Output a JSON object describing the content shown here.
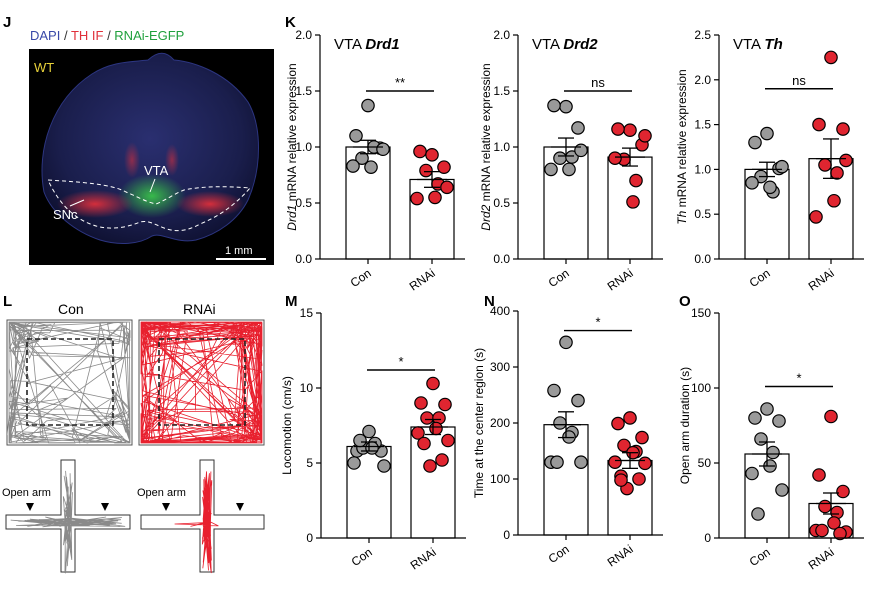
{
  "panel_labels": {
    "J": "J",
    "K": "K",
    "L": "L",
    "M": "M",
    "N": "N",
    "O": "O"
  },
  "micrograph": {
    "legend": {
      "dapi": "DAPI",
      "sep1": " / ",
      "th": "TH IF",
      "sep2": " / ",
      "rnai": "RNAi-EGFP"
    },
    "colors": {
      "dapi": "#3848a8",
      "th": "#e0303a",
      "rnai": "#1fa03c",
      "wt": "#e8d23a"
    },
    "condition": "WT",
    "region_vta": "VTA",
    "region_snc": "SNc",
    "scale_bar": "1 mm"
  },
  "tracks": {
    "con_label": "Con",
    "rnai_label": "RNAi",
    "open_arm_label": "Open arm",
    "colors": {
      "con": "#8a8a8a",
      "rnai": "#e8202e"
    }
  },
  "style": {
    "con_dot": "#9a9a9a",
    "rnai_dot": "#e02530"
  },
  "chart_data": [
    {
      "id": "drd1",
      "type": "bar",
      "title_prefix": "VTA ",
      "title_gene": "Drd1",
      "ylabel_gene": "Drd1",
      "ylabel_rest": " mRNA relative expression",
      "ylabel": "",
      "categories": [
        "Con",
        "RNAi"
      ],
      "ylim": [
        0,
        2.0
      ],
      "yticks": [
        "0.0",
        "0.5",
        "1.0",
        "1.5",
        "2.0"
      ],
      "yticks_v": [
        0,
        0.5,
        1.0,
        1.5,
        2.0
      ],
      "means": [
        1.0,
        0.71
      ],
      "sem": [
        0.06,
        0.07
      ],
      "points": [
        [
          1.37,
          1.1,
          0.99,
          0.9,
          1.0,
          0.82,
          0.83,
          0.98
        ],
        [
          0.93,
          0.96,
          0.82,
          0.79,
          0.67,
          0.55,
          0.54,
          0.64
        ]
      ],
      "significance": "**",
      "sig_y": 1.5
    },
    {
      "id": "drd2",
      "type": "bar",
      "title_prefix": "VTA ",
      "title_gene": "Drd2",
      "ylabel_gene": "Drd2",
      "ylabel_rest": " mRNA relative expression",
      "ylabel": "",
      "categories": [
        "Con",
        "RNAi"
      ],
      "ylim": [
        0,
        2.0
      ],
      "yticks": [
        "0.0",
        "0.5",
        "1.0",
        "1.5",
        "2.0"
      ],
      "yticks_v": [
        0,
        0.5,
        1.0,
        1.5,
        2.0
      ],
      "means": [
        1.0,
        0.91
      ],
      "sem": [
        0.08,
        0.08
      ],
      "points": [
        [
          1.36,
          1.37,
          1.17,
          0.9,
          0.91,
          0.8,
          0.8,
          0.97
        ],
        [
          1.15,
          1.16,
          1.02,
          0.89,
          0.7,
          0.51,
          0.9,
          1.1
        ]
      ],
      "significance": "ns",
      "sig_y": 1.5
    },
    {
      "id": "th",
      "type": "bar",
      "title_prefix": "VTA ",
      "title_gene": "Th",
      "ylabel_gene": "Th",
      "ylabel_rest": " mRNA relative expression",
      "ylabel": "",
      "categories": [
        "Con",
        "RNAi"
      ],
      "ylim": [
        0,
        2.5
      ],
      "yticks": [
        "0.0",
        "0.5",
        "1.0",
        "1.5",
        "2.0",
        "2.5"
      ],
      "yticks_v": [
        0,
        0.5,
        1.0,
        1.5,
        2.0,
        2.5
      ],
      "means": [
        1.0,
        1.12
      ],
      "sem": [
        0.08,
        0.22
      ],
      "points": [
        [
          1.4,
          1.3,
          1.01,
          0.92,
          0.75,
          0.8,
          0.85,
          1.03
        ],
        [
          2.25,
          1.5,
          1.45,
          1.05,
          0.96,
          0.65,
          0.47,
          1.1
        ]
      ],
      "significance": "ns",
      "sig_y": 1.9
    },
    {
      "id": "locomotion",
      "type": "bar",
      "title_prefix": "",
      "title_gene": "",
      "ylabel_gene": "",
      "ylabel_rest": "",
      "ylabel": "Locomotion (cm/s)",
      "categories": [
        "Con",
        "RNAi"
      ],
      "ylim": [
        0,
        15
      ],
      "yticks": [
        "0",
        "5",
        "10",
        "15"
      ],
      "yticks_v": [
        0,
        5,
        10,
        15
      ],
      "means": [
        6.1,
        7.4
      ],
      "sem": [
        0.3,
        0.5
      ],
      "points": [
        [
          7.1,
          5.8,
          5.8,
          6.0,
          6.3,
          6.0,
          5.0,
          4.8,
          6.5
        ],
        [
          10.3,
          9.0,
          8.9,
          8.0,
          8.0,
          7.3,
          7.0,
          6.5,
          6.3,
          5.2,
          4.8
        ]
      ],
      "significance": "*",
      "sig_y": 11.2
    },
    {
      "id": "center",
      "type": "bar",
      "title_prefix": "",
      "title_gene": "",
      "ylabel_gene": "",
      "ylabel_rest": "",
      "ylabel": "Time at the center region (s)",
      "categories": [
        "Con",
        "RNAi"
      ],
      "ylim": [
        0,
        400
      ],
      "yticks": [
        "0",
        "100",
        "200",
        "300",
        "400"
      ],
      "yticks_v": [
        0,
        100,
        200,
        300,
        400
      ],
      "means": [
        197,
        133
      ],
      "sem": [
        23,
        14
      ],
      "points": [
        [
          344,
          258,
          240,
          200,
          183,
          175,
          130,
          130,
          130
        ],
        [
          209,
          199,
          174,
          160,
          149,
          147,
          130,
          128,
          105,
          100,
          83,
          98
        ]
      ],
      "significance": "*",
      "sig_y": 365
    },
    {
      "id": "openarm",
      "type": "bar",
      "title_prefix": "",
      "title_gene": "",
      "ylabel_gene": "",
      "ylabel_rest": "",
      "ylabel": "Open arm duration (s)",
      "categories": [
        "Con",
        "RNAi"
      ],
      "ylim": [
        0,
        150
      ],
      "yticks": [
        "0",
        "50",
        "100",
        "150"
      ],
      "yticks_v": [
        0,
        50,
        100,
        150
      ],
      "means": [
        56,
        23
      ],
      "sem": [
        8,
        7
      ],
      "points": [
        [
          86,
          80,
          78,
          66,
          57,
          48,
          43,
          32,
          16
        ],
        [
          81,
          42,
          31,
          21,
          17,
          10,
          5,
          4,
          5,
          3
        ]
      ],
      "significance": "*",
      "sig_y": 101
    }
  ]
}
